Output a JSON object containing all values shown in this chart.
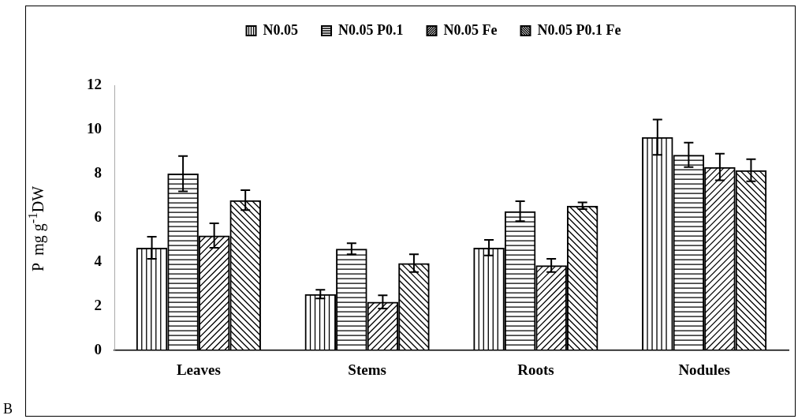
{
  "chart_data": {
    "type": "bar",
    "ylabel": "P  mg g$^{-1}$DW",
    "categories": [
      "Leaves",
      "Stems",
      "Roots",
      "Nodules"
    ],
    "series": [
      {
        "name": "N0.05",
        "color": "#000000",
        "values": [
          4.65,
          2.55,
          4.65,
          9.65
        ],
        "errors": [
          0.5,
          0.2,
          0.35,
          0.8
        ]
      },
      {
        "name": "N0.05 P0.1",
        "color": "#000000",
        "values": [
          8.0,
          4.6,
          6.3,
          8.85
        ],
        "errors": [
          0.8,
          0.25,
          0.45,
          0.55
        ]
      },
      {
        "name": "N0.05 Fe",
        "color": "#000000",
        "values": [
          5.2,
          2.2,
          3.85,
          8.3
        ],
        "errors": [
          0.55,
          0.3,
          0.3,
          0.6
        ]
      },
      {
        "name": "N0.05 P0.1 Fe",
        "color": "#000000",
        "values": [
          6.8,
          3.95,
          6.55,
          8.15
        ],
        "errors": [
          0.45,
          0.4,
          0.15,
          0.5
        ]
      }
    ],
    "ylim": [
      0,
      12
    ],
    "yticks": [
      0,
      2,
      4,
      6,
      8,
      10,
      12
    ],
    "grid": false,
    "legend": "top",
    "annotations": [
      "B"
    ]
  }
}
